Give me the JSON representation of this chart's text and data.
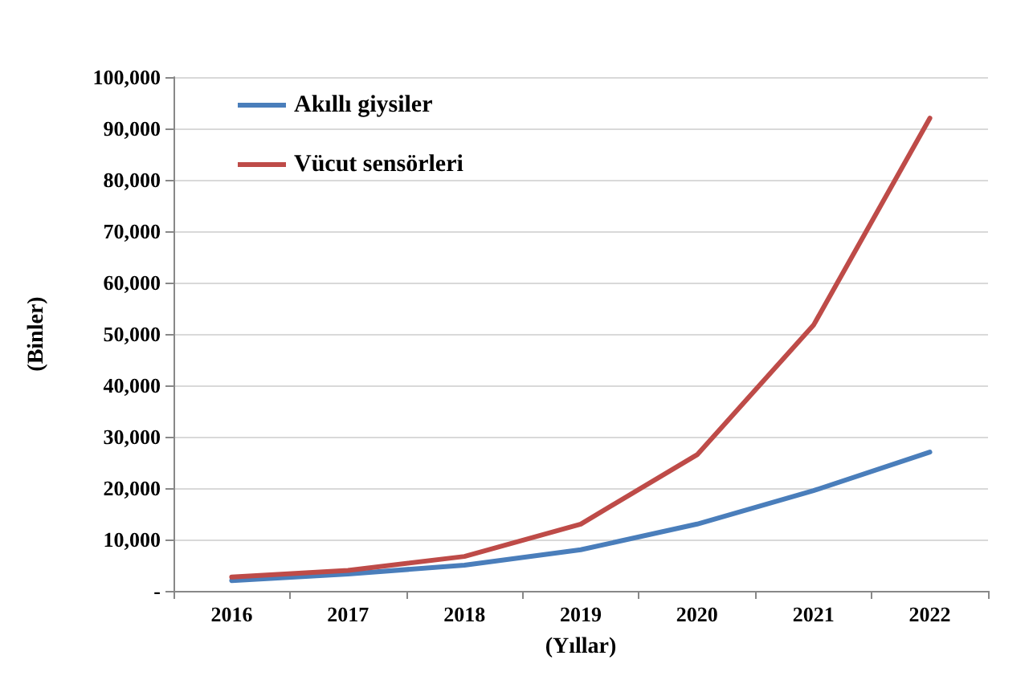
{
  "chart_data": {
    "type": "line",
    "xlabel": "(Yıllar)",
    "ylabel": "(Binler)",
    "categories": [
      "2016",
      "2017",
      "2018",
      "2019",
      "2020",
      "2021",
      "2022"
    ],
    "series": [
      {
        "name": "Akıllı giysiler",
        "color": "#4a7ebb",
        "values": [
          2000,
          3300,
          5000,
          8000,
          13000,
          19500,
          27000
        ]
      },
      {
        "name": "Vücut sensörleri",
        "color": "#be4b48",
        "values": [
          2700,
          4000,
          6700,
          13000,
          26500,
          51700,
          92000
        ]
      }
    ],
    "ylim": [
      0,
      100000
    ],
    "yticks": [
      {
        "value": 0,
        "label": "-"
      },
      {
        "value": 10000,
        "label": "10,000"
      },
      {
        "value": 20000,
        "label": "20,000"
      },
      {
        "value": 30000,
        "label": "30,000"
      },
      {
        "value": 40000,
        "label": "40,000"
      },
      {
        "value": 50000,
        "label": "50,000"
      },
      {
        "value": 60000,
        "label": "60,000"
      },
      {
        "value": 70000,
        "label": "70,000"
      },
      {
        "value": 80000,
        "label": "80,000"
      },
      {
        "value": 90000,
        "label": "90,000"
      },
      {
        "value": 100000,
        "label": "100,000"
      }
    ],
    "grid": "y",
    "legend": "top left",
    "marker": "none",
    "line_style": "solid"
  }
}
